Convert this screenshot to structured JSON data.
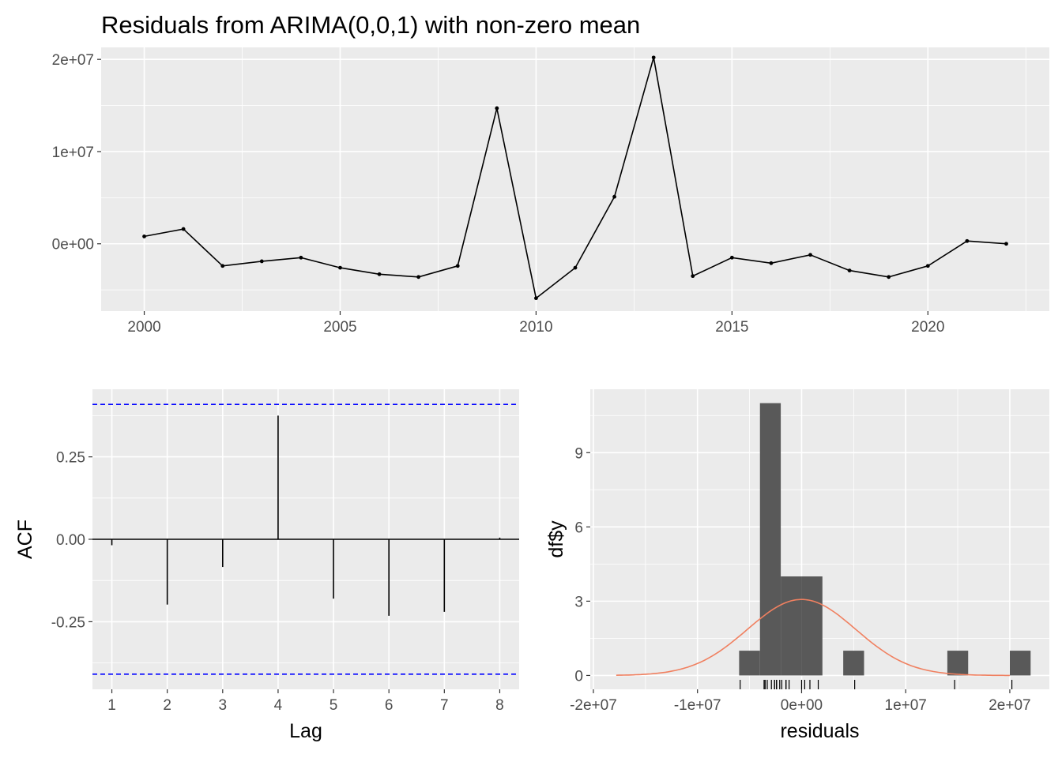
{
  "title": "Residuals from ARIMA(0,0,1) with non-zero mean",
  "chart_data": [
    {
      "type": "line",
      "xlabel": "",
      "ylabel": "",
      "xlim": [
        1998.9,
        2023.1
      ],
      "ylim": [
        -7300000,
        21300000
      ],
      "x_ticks": [
        2000,
        2005,
        2010,
        2015,
        2020
      ],
      "x_tick_labels": [
        "2000",
        "2005",
        "2010",
        "2015",
        "2020"
      ],
      "y_ticks": [
        0,
        10000000,
        20000000
      ],
      "y_tick_labels": [
        "0e+00",
        "1e+07",
        "2e+07"
      ],
      "grid": true,
      "x": [
        2000,
        2001,
        2002,
        2003,
        2004,
        2005,
        2006,
        2007,
        2008,
        2009,
        2010,
        2011,
        2012,
        2013,
        2014,
        2015,
        2016,
        2017,
        2018,
        2019,
        2020,
        2021,
        2022
      ],
      "values": [
        800000,
        1600000,
        -2400000,
        -1900000,
        -1500000,
        -2600000,
        -3300000,
        -3600000,
        -2400000,
        14700000,
        -5900000,
        -2600000,
        5100000,
        20200000,
        -3500000,
        -1500000,
        -2100000,
        -1200000,
        -2900000,
        -3600000,
        -2400000,
        300000,
        0
      ],
      "color": "#000000"
    },
    {
      "type": "bar",
      "xlabel": "Lag",
      "ylabel": "ACF",
      "xlim": [
        0.65,
        8.35
      ],
      "ylim": [
        -0.455,
        0.455
      ],
      "x_ticks": [
        1,
        2,
        3,
        4,
        5,
        6,
        7,
        8
      ],
      "x_tick_labels": [
        "1",
        "2",
        "3",
        "4",
        "5",
        "6",
        "7",
        "8"
      ],
      "y_ticks": [
        -0.25,
        0,
        0.25
      ],
      "y_tick_labels": [
        "-0.25",
        "0.00",
        "0.25"
      ],
      "grid": true,
      "lags": [
        1,
        2,
        3,
        4,
        5,
        6,
        7,
        8
      ],
      "values": [
        -0.018,
        -0.198,
        -0.084,
        0.375,
        -0.18,
        -0.232,
        -0.22,
        0.005
      ],
      "confidence_bound": 0.409,
      "confidence_color": "#0000ff"
    },
    {
      "type": "bar",
      "subtype": "histogram",
      "xlabel": "residuals",
      "ylabel": "df$y",
      "xlim": [
        -20300000,
        23800000
      ],
      "ylim": [
        -0.56,
        11.56
      ],
      "x_ticks": [
        -20000000,
        -10000000,
        0,
        10000000,
        20000000
      ],
      "x_tick_labels": [
        "-2e+07",
        "-1e+07",
        "0e+00",
        "1e+07",
        "2e+07"
      ],
      "y_ticks": [
        0,
        3,
        6,
        9
      ],
      "y_tick_labels": [
        "0",
        "3",
        "6",
        "9"
      ],
      "grid": true,
      "bin_width": 2000000,
      "bins": [
        {
          "start": -6000000,
          "end": -4000000,
          "count": 1
        },
        {
          "start": -4000000,
          "end": -2000000,
          "count": 11
        },
        {
          "start": -2000000,
          "end": 0,
          "count": 4
        },
        {
          "start": 0,
          "end": 2000000,
          "count": 4
        },
        {
          "start": 4000000,
          "end": 6000000,
          "count": 1
        },
        {
          "start": 14000000,
          "end": 16000000,
          "count": 1
        },
        {
          "start": 20000000,
          "end": 22000000,
          "count": 1
        }
      ],
      "bar_color": "#595959",
      "density_curve": {
        "mean": 0,
        "sd": 5200000,
        "peak": 3.07,
        "x_range": [
          -17800000,
          20000000
        ],
        "color": "#f08060"
      },
      "rug": [
        800000,
        1600000,
        -2400000,
        -1900000,
        -1500000,
        -2600000,
        -3300000,
        -3600000,
        -2400000,
        14700000,
        -5900000,
        -2600000,
        5100000,
        20200000,
        -3500000,
        -1500000,
        -2100000,
        -1200000,
        -2900000,
        -3600000,
        -2400000,
        300000,
        0
      ]
    }
  ]
}
